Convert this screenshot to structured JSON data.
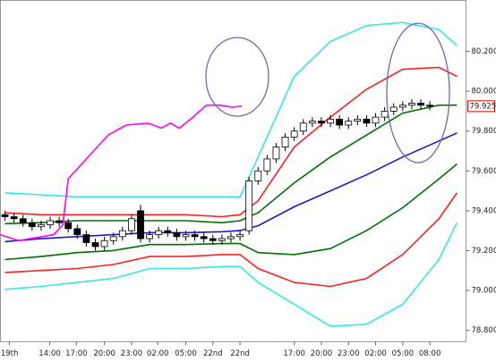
{
  "chart_data": {
    "type": "candlestick",
    "xlim": [
      -0.5,
      51
    ],
    "ylim": [
      78.742,
      80.456
    ],
    "yticks": [
      {
        "value": 80.2,
        "label": "80.200"
      },
      {
        "value": 80.0,
        "label": "80.000"
      },
      {
        "value": 79.8,
        "label": "79.800"
      },
      {
        "value": 79.6,
        "label": "79.600"
      },
      {
        "value": 79.4,
        "label": "79.400"
      },
      {
        "value": 79.2,
        "label": "79.200"
      },
      {
        "value": 79.0,
        "label": "79.000"
      },
      {
        "value": 78.8,
        "label": "78.800"
      }
    ],
    "xticks": [
      {
        "value": 0.5,
        "label": "19th"
      },
      {
        "value": 4.95,
        "label": "14:00"
      },
      {
        "value": 7.9,
        "label": "17:00"
      },
      {
        "value": 11,
        "label": "20:00"
      },
      {
        "value": 14,
        "label": "23:00"
      },
      {
        "value": 16.9,
        "label": "02:00"
      },
      {
        "value": 20,
        "label": "05:00"
      },
      {
        "value": 23,
        "label": "22nd"
      },
      {
        "value": 26,
        "label": "22nd"
      },
      {
        "value": 32,
        "label": "17:00"
      },
      {
        "value": 35,
        "label": "20:00"
      },
      {
        "value": 38,
        "label": "23:00"
      },
      {
        "value": 41,
        "label": "02:00"
      },
      {
        "value": 44,
        "label": "05:00"
      },
      {
        "value": 47,
        "label": "08:00"
      }
    ],
    "last_value": 79.925,
    "open": [
      79.38,
      79.37,
      79.36,
      79.34,
      79.32,
      79.33,
      79.35,
      79.34,
      79.31,
      79.28,
      79.24,
      79.22,
      79.25,
      79.27,
      79.3,
      79.4,
      79.26,
      79.28,
      79.3,
      79.29,
      79.27,
      79.28,
      79.27,
      79.26,
      79.25,
      79.26,
      79.27,
      79.3,
      79.55,
      79.6,
      79.66,
      79.72,
      79.77,
      79.8,
      79.84,
      79.85,
      79.84,
      79.86,
      79.83,
      79.85,
      79.86,
      79.84,
      79.87,
      79.9,
      79.92,
      79.93,
      79.94,
      79.93
    ],
    "high": [
      79.4,
      79.39,
      79.38,
      79.36,
      79.35,
      79.37,
      79.37,
      79.36,
      79.33,
      79.3,
      79.26,
      79.27,
      79.29,
      79.32,
      79.38,
      79.43,
      79.3,
      79.32,
      79.32,
      79.31,
      79.3,
      79.3,
      79.29,
      79.28,
      79.28,
      79.29,
      79.3,
      79.57,
      79.62,
      79.68,
      79.74,
      79.79,
      79.82,
      79.86,
      79.87,
      79.87,
      79.88,
      79.88,
      79.87,
      79.88,
      79.88,
      79.89,
      79.92,
      79.94,
      79.95,
      79.96,
      79.96,
      79.95
    ],
    "low": [
      79.35,
      79.34,
      79.32,
      79.3,
      79.3,
      79.31,
      79.32,
      79.29,
      79.26,
      79.22,
      79.2,
      79.2,
      79.23,
      79.25,
      79.28,
      79.24,
      79.24,
      79.26,
      79.27,
      79.25,
      79.25,
      79.25,
      79.24,
      79.23,
      79.23,
      79.24,
      79.25,
      79.28,
      79.53,
      79.58,
      79.64,
      79.7,
      79.75,
      79.78,
      79.82,
      79.82,
      79.82,
      79.81,
      79.81,
      79.83,
      79.82,
      79.82,
      79.85,
      79.88,
      79.9,
      79.91,
      79.91,
      79.905
    ],
    "close": [
      79.37,
      79.36,
      79.34,
      79.32,
      79.33,
      79.35,
      79.34,
      79.31,
      79.28,
      79.24,
      79.22,
      79.25,
      79.27,
      79.3,
      79.36,
      79.26,
      79.28,
      79.3,
      79.29,
      79.27,
      79.28,
      79.27,
      79.26,
      79.25,
      79.26,
      79.27,
      79.28,
      79.55,
      79.6,
      79.66,
      79.72,
      79.77,
      79.8,
      79.84,
      79.85,
      79.84,
      79.86,
      79.83,
      79.85,
      79.86,
      79.84,
      79.87,
      79.9,
      79.92,
      79.93,
      79.94,
      79.93,
      79.925
    ],
    "series": [
      {
        "color": "#33e8e8",
        "x": [
          0,
          4,
          8,
          12,
          16,
          20,
          24,
          26,
          28,
          32,
          36,
          40,
          44,
          48,
          50
        ],
        "values": [
          79.49,
          79.48,
          79.47,
          79.47,
          79.47,
          79.47,
          79.47,
          79.47,
          79.67,
          80.075,
          80.25,
          80.33,
          80.345,
          80.31,
          80.23
        ]
      },
      {
        "color": "#ff2020",
        "x": [
          0,
          4,
          8,
          12,
          16,
          20,
          24,
          26,
          28,
          32,
          36,
          40,
          44,
          48,
          50
        ],
        "values": [
          79.39,
          79.38,
          79.38,
          79.38,
          79.38,
          79.38,
          79.37,
          79.38,
          79.45,
          79.72,
          79.87,
          80.01,
          80.11,
          80.12,
          80.075
        ]
      },
      {
        "color": "#007000",
        "x": [
          0,
          4,
          8,
          12,
          16,
          20,
          24,
          26,
          28,
          32,
          36,
          40,
          44,
          48,
          50
        ],
        "values": [
          79.335,
          79.34,
          79.35,
          79.35,
          79.35,
          79.35,
          79.34,
          79.35,
          79.39,
          79.54,
          79.67,
          79.78,
          79.89,
          79.93,
          79.93
        ]
      },
      {
        "color": "#1a1acc",
        "x": [
          0,
          4,
          8,
          12,
          16,
          20,
          24,
          26,
          28,
          32,
          36,
          40,
          44,
          48,
          50
        ],
        "values": [
          79.245,
          79.26,
          79.27,
          79.28,
          79.29,
          79.29,
          79.295,
          79.3,
          79.325,
          79.42,
          79.5,
          79.58,
          79.67,
          79.75,
          79.79
        ]
      },
      {
        "color": "#007000",
        "x": [
          0,
          4,
          8,
          12,
          16,
          20,
          24,
          26,
          28,
          32,
          36,
          40,
          44,
          48,
          50
        ],
        "values": [
          79.155,
          79.17,
          79.19,
          79.2,
          79.23,
          79.23,
          79.235,
          79.235,
          79.19,
          79.18,
          79.21,
          79.3,
          79.415,
          79.56,
          79.635
        ]
      },
      {
        "color": "#ff2020",
        "x": [
          0,
          4,
          8,
          12,
          16,
          20,
          24,
          26,
          28,
          32,
          36,
          40,
          44,
          48,
          50
        ],
        "values": [
          79.09,
          79.1,
          79.11,
          79.13,
          79.17,
          79.17,
          79.18,
          79.18,
          79.11,
          79.04,
          79.02,
          79.06,
          79.18,
          79.36,
          79.49
        ]
      },
      {
        "color": "#33e8e8",
        "x": [
          0,
          4,
          8,
          12,
          16,
          20,
          24,
          26,
          28,
          32,
          36,
          40,
          44,
          48,
          50
        ],
        "values": [
          79.005,
          79.02,
          79.04,
          79.06,
          79.11,
          79.11,
          79.12,
          79.12,
          79.04,
          78.93,
          78.82,
          78.83,
          78.93,
          79.155,
          79.34
        ]
      },
      {
        "color": "#ff00ff",
        "x": [
          -0.5,
          1.5,
          5.4,
          6.4,
          7,
          9,
          11.4,
          13.4,
          15.8,
          17.3,
          18.3,
          19.3,
          20.8,
          22.3,
          23.8,
          25.1,
          26.2
        ],
        "values": [
          79.28,
          79.25,
          79.28,
          79.33,
          79.56,
          79.66,
          79.78,
          79.83,
          79.84,
          79.815,
          79.84,
          79.815,
          79.87,
          79.93,
          79.93,
          79.92,
          79.925
        ]
      }
    ]
  }
}
